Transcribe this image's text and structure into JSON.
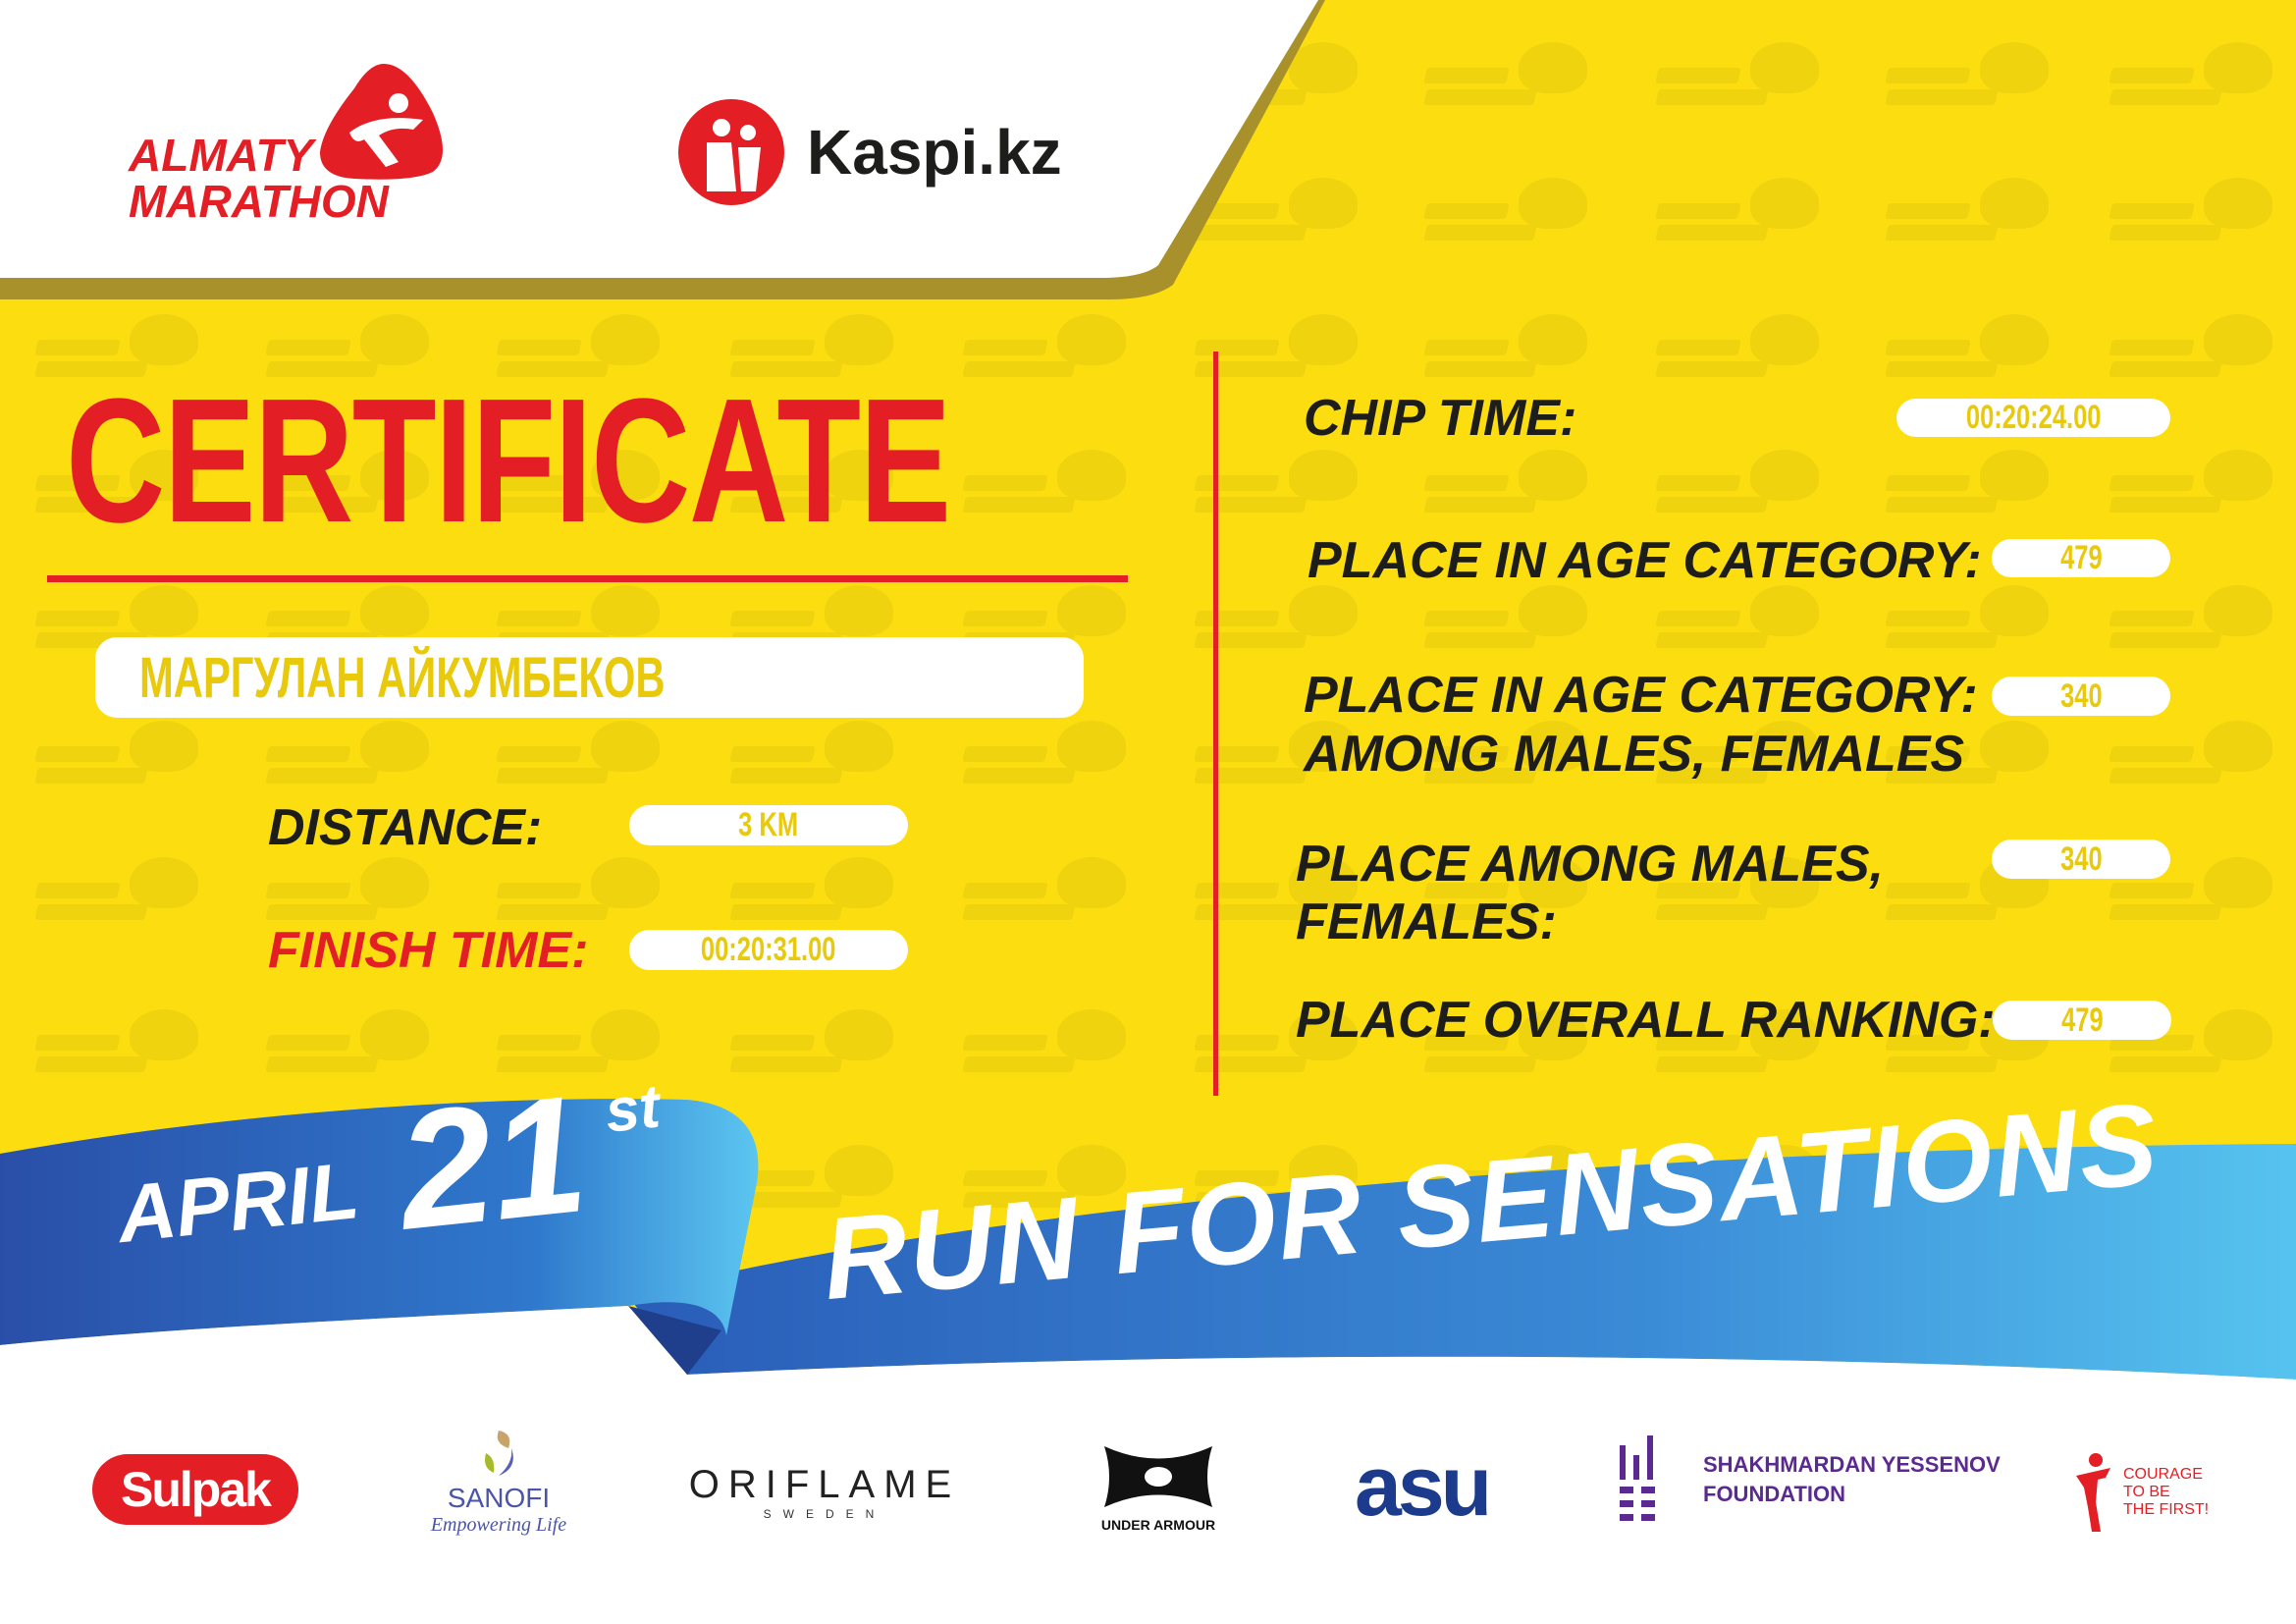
{
  "header": {
    "event_logo_line1": "ALMATY",
    "event_logo_line2": "MARATHON",
    "sponsor_logo": "Kaspi.kz"
  },
  "watermark_text": [
    "ALMATY",
    "MARATHON"
  ],
  "certificate": {
    "title": "CERTIFICATE",
    "participant_name": "МАРГУЛАН АЙКУМБЕКОВ",
    "distance_label": "DISTANCE:",
    "distance_value": "3 KM",
    "finish_time_label": "FINISH TIME:",
    "finish_time_value": "00:20:31.00",
    "chip_time_label": "CHIP TIME:",
    "chip_time_value": "00:20:24.00",
    "place_age_label": "PLACE IN AGE CATEGORY:",
    "place_age_value": "479",
    "place_age_gender_label_1": "PLACE IN AGE CATEGORY:",
    "place_age_gender_label_2": "AMONG MALES, FEMALES",
    "place_age_gender_value": "340",
    "place_gender_label_1": "PLACE AMONG MALES,",
    "place_gender_label_2": "FEMALES:",
    "place_gender_value": "340",
    "overall_label": "PLACE OVERALL RANKING:",
    "overall_value": "479"
  },
  "ribbon": {
    "month": "APRIL",
    "day": "21",
    "suffix": "st",
    "slogan": "RUN FOR SENSATIONS"
  },
  "sponsors": {
    "sulpak": "Sulpak",
    "sanofi": "SANOFI",
    "sanofi_tagline": "Empowering Life",
    "oriflame": "ORIFLAME",
    "oriflame_sub": "SWEDEN",
    "under_armour": "UNDER ARMOUR",
    "asu": "asu",
    "yessenov_1": "SHAKHMARDAN YESSENOV",
    "yessenov_2": "FOUNDATION",
    "courage_1": "COURAGE",
    "courage_2": "TO BE",
    "courage_3": "THE FIRST!"
  },
  "colors": {
    "background_yellow": "#fcde10",
    "accent_red": "#e31e24",
    "ribbon_blue": "#2f6fc4",
    "ribbon_light_blue": "#4fc0ee",
    "value_text": "#e8c90c"
  }
}
